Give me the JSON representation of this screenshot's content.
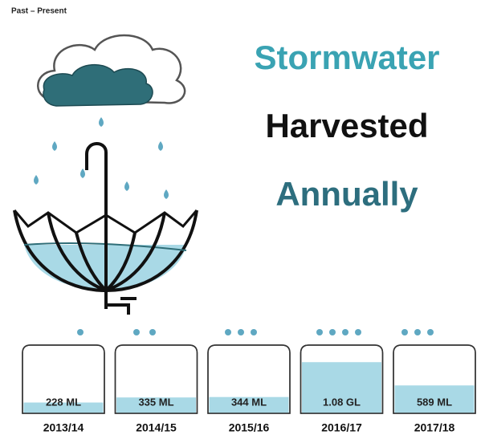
{
  "chart_data": {
    "type": "bar",
    "subtitle": "Past – Present",
    "title_lines": [
      "Stormwater",
      "Harvested",
      "Annually"
    ],
    "title_colors": [
      "#3aa3b3",
      "#111111",
      "#2d6e7e"
    ],
    "categories": [
      "2013/14",
      "2014/15",
      "2015/16",
      "2016/17",
      "2017/18"
    ],
    "values": [
      228,
      335,
      344,
      1080,
      589
    ],
    "value_labels": [
      "228 ML",
      "335 ML",
      "344 ML",
      "1.08 GL",
      "589 ML"
    ],
    "color": "#a9d9e6"
  }
}
